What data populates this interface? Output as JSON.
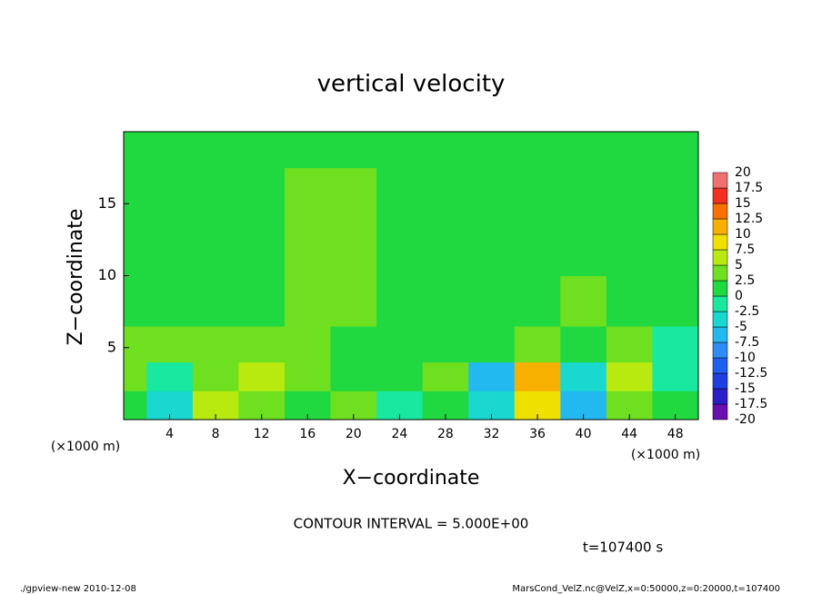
{
  "chart_data": {
    "type": "contour",
    "title": "vertical velocity",
    "x_label": "X−coordinate",
    "y_label": "Z−coordinate",
    "x_unit": "(×1000 m)",
    "y_unit": "(×1000 m)",
    "contour_note": "CONTOUR INTERVAL = 5.000E+00",
    "time_label": "t=107400 s",
    "footer_left": "./gpview-new  2010-12-08",
    "footer_right": "MarsCond_VelZ.nc@VelZ,x=0:50000,z=0:20000,t=107400",
    "x": [
      0,
      4,
      8,
      12,
      16,
      20,
      24,
      28,
      32,
      36,
      40,
      44,
      48
    ],
    "z": [
      1,
      3,
      5,
      8,
      12,
      16,
      19
    ],
    "values": [
      [
        2,
        -3,
        5,
        4,
        1,
        3,
        -2,
        2,
        -5,
        8,
        -6,
        3,
        2
      ],
      [
        3,
        -2,
        4,
        6,
        3,
        2,
        0,
        3,
        -6,
        12,
        -5,
        5,
        -1
      ],
      [
        4,
        3,
        3,
        4,
        3,
        2,
        1,
        2,
        1,
        4,
        1,
        3,
        -2
      ],
      [
        1,
        2,
        1,
        2,
        3,
        3,
        2,
        1,
        1,
        2,
        3,
        2,
        1
      ],
      [
        1,
        1,
        1,
        1,
        3,
        4,
        2,
        1,
        1,
        2,
        1,
        1,
        1
      ],
      [
        1,
        1,
        1,
        1,
        3,
        4,
        2,
        1,
        1,
        1,
        1,
        1,
        1
      ],
      [
        1,
        1,
        1,
        1,
        2,
        2,
        1,
        1,
        1,
        1,
        1,
        1,
        1
      ]
    ],
    "xlim": [
      0,
      50
    ],
    "ylim": [
      0,
      20
    ],
    "xticks": [
      4,
      8,
      12,
      16,
      20,
      24,
      28,
      32,
      36,
      40,
      44,
      48
    ],
    "yticks": [
      5,
      10,
      15
    ],
    "colorbar": {
      "levels": [
        -20,
        -17.5,
        -15,
        -12.5,
        -10,
        -7.5,
        -5,
        -2.5,
        0,
        2.5,
        5,
        7.5,
        10,
        12.5,
        15,
        17.5,
        20
      ],
      "colors": [
        "#6a0fb0",
        "#2a1fc8",
        "#1f3fe0",
        "#2060f0",
        "#2f8cf5",
        "#22b8f0",
        "#18d8d0",
        "#18e8a0",
        "#20d840",
        "#6fe020",
        "#b8ea10",
        "#f0e000",
        "#f8b000",
        "#f87000",
        "#f03020",
        "#f07070"
      ]
    }
  }
}
